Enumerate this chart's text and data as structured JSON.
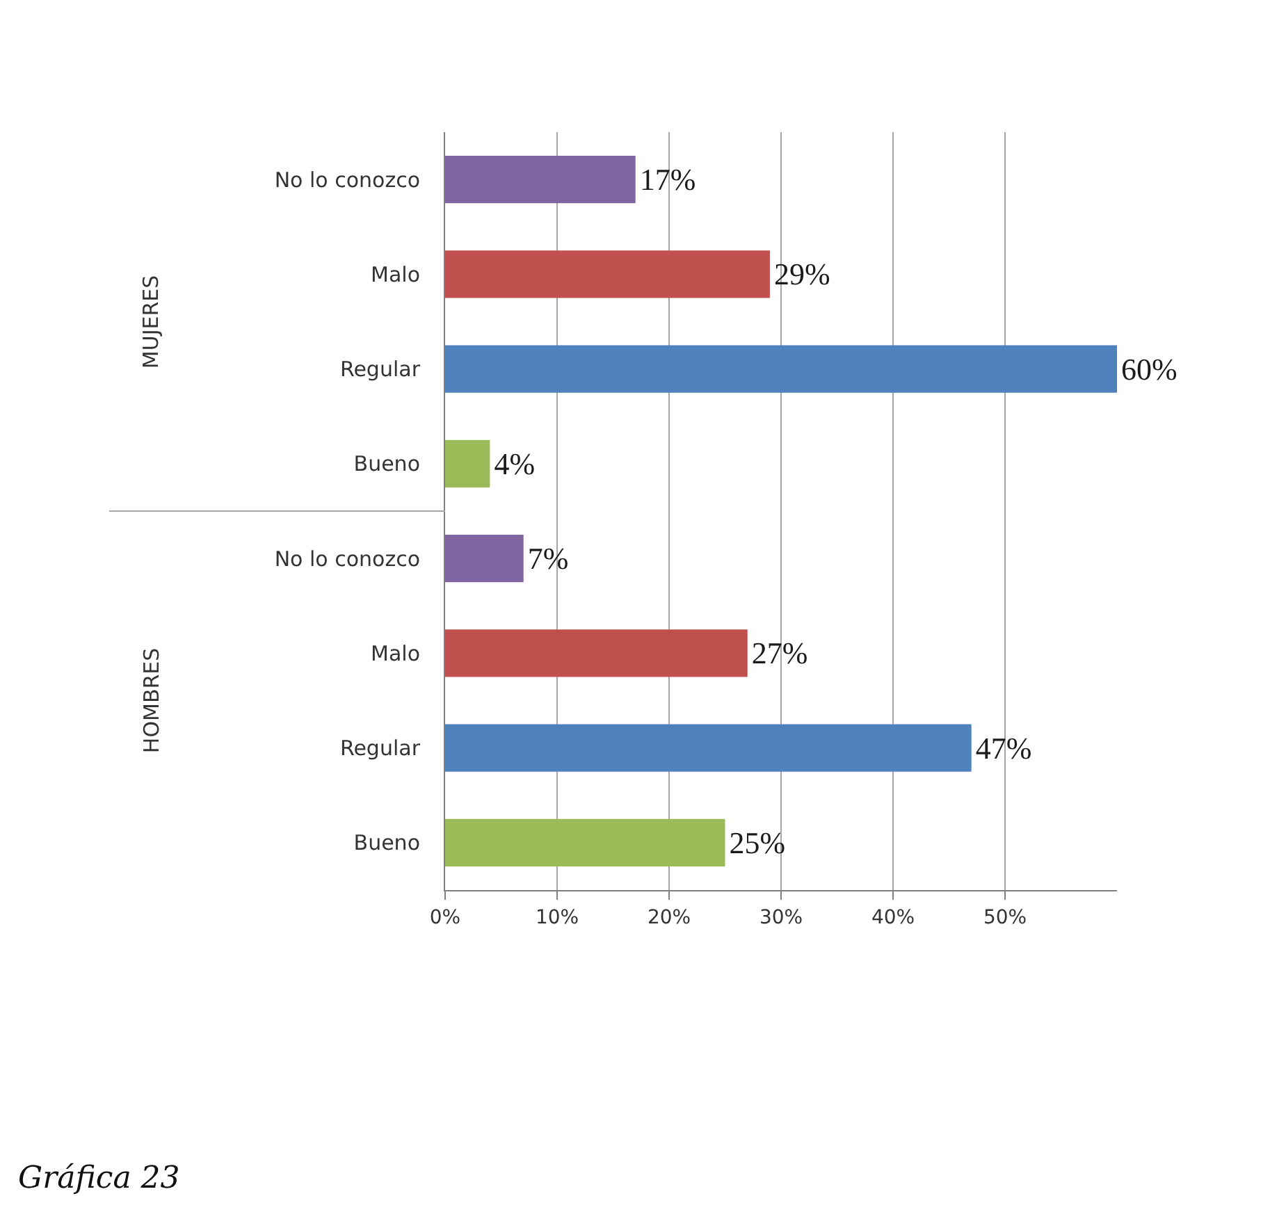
{
  "chart_data": {
    "type": "bar",
    "orientation": "horizontal",
    "categories": [
      "No lo conozco",
      "Malo",
      "Regular",
      "Bueno",
      "No lo conozco",
      "Malo",
      "Regular",
      "Bueno"
    ],
    "values": [
      17,
      29,
      60,
      4,
      7,
      27,
      47,
      25
    ],
    "colors": [
      "#8064a2",
      "#c0504d",
      "#4f81bd",
      "#9bbb59",
      "#8064a2",
      "#c0504d",
      "#4f81bd",
      "#9bbb59"
    ],
    "value_labels": [
      "17%",
      "29%",
      "60%",
      "4%",
      "7%",
      "27%",
      "47%",
      "25%"
    ],
    "xlim": [
      0,
      60
    ],
    "xticks": [
      {
        "value": 0,
        "label": "0%"
      },
      {
        "value": 10,
        "label": "10%"
      },
      {
        "value": 20,
        "label": "20%"
      },
      {
        "value": 30,
        "label": "30%"
      },
      {
        "value": 40,
        "label": "40%"
      },
      {
        "value": 50,
        "label": "50%"
      }
    ],
    "grid": "x",
    "annotations": [
      "MUJERES",
      "HOMBRES",
      "Gráfica 23"
    ]
  }
}
